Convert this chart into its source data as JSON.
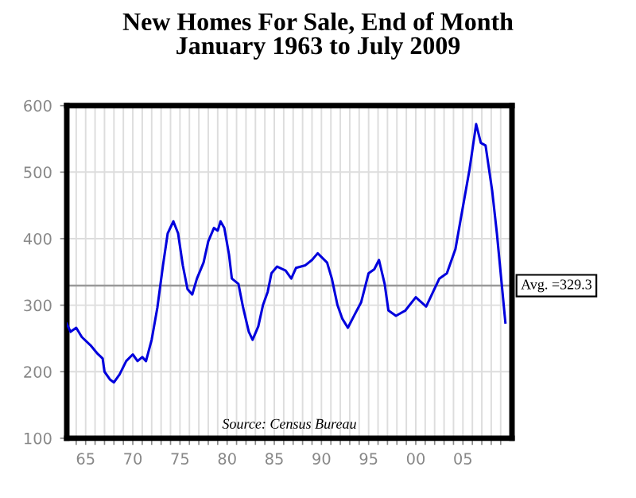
{
  "chart_data": {
    "type": "line",
    "title": "New Homes For Sale, End of Month\nJanuary 1963 to July 2009",
    "x": [
      1963.0,
      1963.4,
      1964.0,
      1964.6,
      1965.5,
      1966.2,
      1966.8,
      1967.0,
      1967.6,
      1968.0,
      1968.6,
      1969.3,
      1970.0,
      1970.5,
      1971.0,
      1971.4,
      1972.0,
      1972.6,
      1973.2,
      1973.7,
      1974.3,
      1974.8,
      1975.3,
      1975.8,
      1976.3,
      1976.8,
      1977.5,
      1978.0,
      1978.6,
      1979.0,
      1979.3,
      1979.7,
      1980.2,
      1980.5,
      1981.2,
      1981.7,
      1982.3,
      1982.7,
      1983.3,
      1983.8,
      1984.3,
      1984.7,
      1985.3,
      1986.2,
      1986.8,
      1987.3,
      1988.3,
      1989.0,
      1989.6,
      1990.6,
      1991.1,
      1991.7,
      1992.2,
      1992.8,
      1993.6,
      1994.2,
      1995.0,
      1995.6,
      1996.1,
      1996.7,
      1997.1,
      1997.9,
      1998.9,
      2000.0,
      2001.1,
      2002.5,
      2003.3,
      2004.2,
      2005.0,
      2005.7,
      2006.4,
      2006.9,
      2007.4,
      2008.1,
      2008.6,
      2009.5
    ],
    "series": [
      {
        "color": "#0000dd",
        "values": [
          272,
          260,
          266,
          252,
          240,
          228,
          220,
          200,
          188,
          184,
          196,
          216,
          226,
          216,
          222,
          216,
          248,
          296,
          360,
          408,
          426,
          408,
          360,
          324,
          316,
          340,
          364,
          396,
          416,
          412,
          426,
          416,
          376,
          340,
          332,
          296,
          260,
          248,
          268,
          300,
          320,
          348,
          358,
          352,
          340,
          356,
          360,
          368,
          378,
          364,
          340,
          300,
          280,
          266,
          288,
          304,
          348,
          354,
          368,
          332,
          292,
          284,
          292,
          312,
          298,
          340,
          348,
          384,
          448,
          504,
          572,
          544,
          540,
          472,
          408,
          274
        ]
      }
    ],
    "xlim": [
      1963,
      2010.2
    ],
    "xticks": [
      {
        "value": 1964,
        "label": null
      },
      {
        "value": 1965,
        "label": "65"
      },
      {
        "value": 1966,
        "label": null
      },
      {
        "value": 1967,
        "label": null
      },
      {
        "value": 1968,
        "label": null
      },
      {
        "value": 1969,
        "label": null
      },
      {
        "value": 1970,
        "label": "70"
      },
      {
        "value": 1971,
        "label": null
      },
      {
        "value": 1972,
        "label": null
      },
      {
        "value": 1973,
        "label": null
      },
      {
        "value": 1974,
        "label": null
      },
      {
        "value": 1975,
        "label": "75"
      },
      {
        "value": 1976,
        "label": null
      },
      {
        "value": 1977,
        "label": null
      },
      {
        "value": 1978,
        "label": null
      },
      {
        "value": 1979,
        "label": null
      },
      {
        "value": 1980,
        "label": "80"
      },
      {
        "value": 1981,
        "label": null
      },
      {
        "value": 1982,
        "label": null
      },
      {
        "value": 1983,
        "label": null
      },
      {
        "value": 1984,
        "label": null
      },
      {
        "value": 1985,
        "label": "85"
      },
      {
        "value": 1986,
        "label": null
      },
      {
        "value": 1987,
        "label": null
      },
      {
        "value": 1988,
        "label": null
      },
      {
        "value": 1989,
        "label": null
      },
      {
        "value": 1990,
        "label": "90"
      },
      {
        "value": 1991,
        "label": null
      },
      {
        "value": 1992,
        "label": null
      },
      {
        "value": 1993,
        "label": null
      },
      {
        "value": 1994,
        "label": null
      },
      {
        "value": 1995,
        "label": "95"
      },
      {
        "value": 1996,
        "label": null
      },
      {
        "value": 1997,
        "label": null
      },
      {
        "value": 1998,
        "label": null
      },
      {
        "value": 1999,
        "label": null
      },
      {
        "value": 2000,
        "label": "00"
      },
      {
        "value": 2001,
        "label": null
      },
      {
        "value": 2002,
        "label": null
      },
      {
        "value": 2003,
        "label": null
      },
      {
        "value": 2004,
        "label": null
      },
      {
        "value": 2005,
        "label": "05"
      },
      {
        "value": 2006,
        "label": null
      },
      {
        "value": 2007,
        "label": null
      },
      {
        "value": 2008,
        "label": null
      },
      {
        "value": 2009,
        "label": null
      }
    ],
    "ylim": [
      100,
      600
    ],
    "yticks": [
      100,
      200,
      300,
      400,
      500,
      600
    ],
    "grid": true,
    "marker": "none",
    "line_style": "solid",
    "ref_lines": [
      {
        "axis": "y",
        "value": 329.3,
        "label": "Avg. =329.3",
        "color": "#999999"
      }
    ],
    "annotations": [
      "Source: Census Bureau"
    ]
  }
}
